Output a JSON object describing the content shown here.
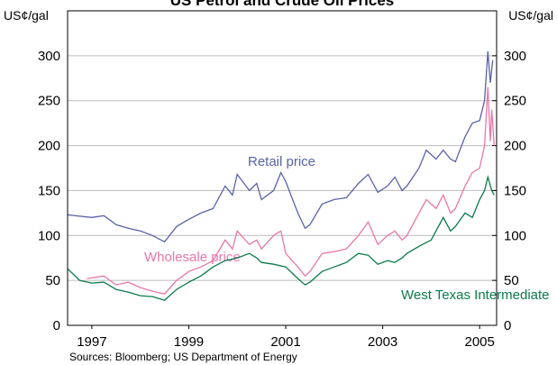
{
  "chart_data": {
    "type": "line",
    "title": "US Petrol and Crude Oil Prices",
    "ylabel": "US¢/gal",
    "y2label": "US¢/gal",
    "source": "Sources: Bloomberg; US Department of Energy",
    "xlim": [
      1997.0,
      2005.85
    ],
    "xticks": [
      {
        "value": 1997.5,
        "label": "1997"
      },
      {
        "value": 1999.5,
        "label": "1999"
      },
      {
        "value": 2001.5,
        "label": "2001"
      },
      {
        "value": 2003.5,
        "label": "2003"
      },
      {
        "value": 2005.5,
        "label": "2005"
      }
    ],
    "ylim": [
      0,
      350
    ],
    "yticks": [
      0,
      50,
      100,
      150,
      200,
      250,
      300
    ],
    "y2lim": [
      0,
      350
    ],
    "y2ticks": [
      0,
      50,
      100,
      150,
      200,
      250,
      300
    ],
    "grid": true,
    "series": [
      {
        "name": "Retail price",
        "color": "#5a62a8",
        "x": [
          1997.0,
          1997.5,
          1997.75,
          1998.0,
          1998.25,
          1998.5,
          1998.75,
          1999.0,
          1999.25,
          1999.5,
          1999.75,
          2000.0,
          2000.25,
          2000.4,
          2000.5,
          2000.75,
          2000.9,
          2001.0,
          2001.25,
          2001.4,
          2001.5,
          2001.75,
          2001.9,
          2002.0,
          2002.25,
          2002.5,
          2002.75,
          2003.0,
          2003.2,
          2003.4,
          2003.6,
          2003.75,
          2003.9,
          2004.0,
          2004.25,
          2004.4,
          2004.6,
          2004.75,
          2004.9,
          2005.0,
          2005.2,
          2005.35,
          2005.5,
          2005.6,
          2005.67,
          2005.72,
          2005.77
        ],
        "values": [
          123,
          120,
          122,
          112,
          108,
          105,
          100,
          93,
          110,
          118,
          125,
          130,
          155,
          145,
          168,
          150,
          158,
          140,
          150,
          170,
          160,
          125,
          108,
          112,
          135,
          140,
          142,
          158,
          168,
          148,
          155,
          165,
          150,
          155,
          175,
          195,
          185,
          195,
          185,
          182,
          210,
          225,
          228,
          250,
          305,
          270,
          295
        ]
      },
      {
        "name": "Wholesale price",
        "color": "#e877a9",
        "x": [
          1997.4,
          1997.75,
          1998.0,
          1998.25,
          1998.5,
          1998.75,
          1999.0,
          1999.25,
          1999.5,
          1999.75,
          2000.0,
          2000.25,
          2000.4,
          2000.5,
          2000.75,
          2000.9,
          2001.0,
          2001.25,
          2001.4,
          2001.5,
          2001.75,
          2001.9,
          2002.0,
          2002.25,
          2002.5,
          2002.75,
          2003.0,
          2003.2,
          2003.4,
          2003.6,
          2003.75,
          2003.9,
          2004.0,
          2004.25,
          2004.4,
          2004.6,
          2004.75,
          2004.9,
          2005.0,
          2005.2,
          2005.35,
          2005.5,
          2005.6,
          2005.67,
          2005.72,
          2005.75,
          2005.8
        ],
        "values": [
          52,
          55,
          45,
          48,
          42,
          38,
          35,
          50,
          60,
          65,
          72,
          95,
          85,
          105,
          90,
          95,
          85,
          100,
          105,
          80,
          65,
          55,
          60,
          80,
          82,
          85,
          100,
          115,
          90,
          100,
          105,
          95,
          100,
          125,
          140,
          130,
          145,
          125,
          130,
          155,
          170,
          175,
          200,
          265,
          205,
          240,
          200
        ]
      },
      {
        "name": "West Texas Intermediate",
        "color": "#0b7a4b",
        "x": [
          1997.0,
          1997.25,
          1997.5,
          1997.75,
          1998.0,
          1998.25,
          1998.5,
          1998.75,
          1999.0,
          1999.25,
          1999.5,
          1999.75,
          2000.0,
          2000.25,
          2000.5,
          2000.75,
          2000.9,
          2001.0,
          2001.25,
          2001.5,
          2001.75,
          2001.9,
          2002.0,
          2002.25,
          2002.5,
          2002.75,
          2003.0,
          2003.2,
          2003.4,
          2003.6,
          2003.75,
          2003.9,
          2004.0,
          2004.25,
          2004.5,
          2004.75,
          2004.9,
          2005.0,
          2005.2,
          2005.35,
          2005.5,
          2005.6,
          2005.67,
          2005.75,
          2005.8
        ],
        "values": [
          63,
          50,
          47,
          48,
          40,
          37,
          33,
          32,
          28,
          40,
          48,
          55,
          65,
          72,
          75,
          80,
          75,
          70,
          68,
          65,
          52,
          45,
          48,
          60,
          65,
          70,
          80,
          78,
          68,
          72,
          70,
          75,
          80,
          88,
          95,
          120,
          105,
          110,
          125,
          120,
          140,
          150,
          165,
          150,
          145
        ]
      }
    ]
  }
}
